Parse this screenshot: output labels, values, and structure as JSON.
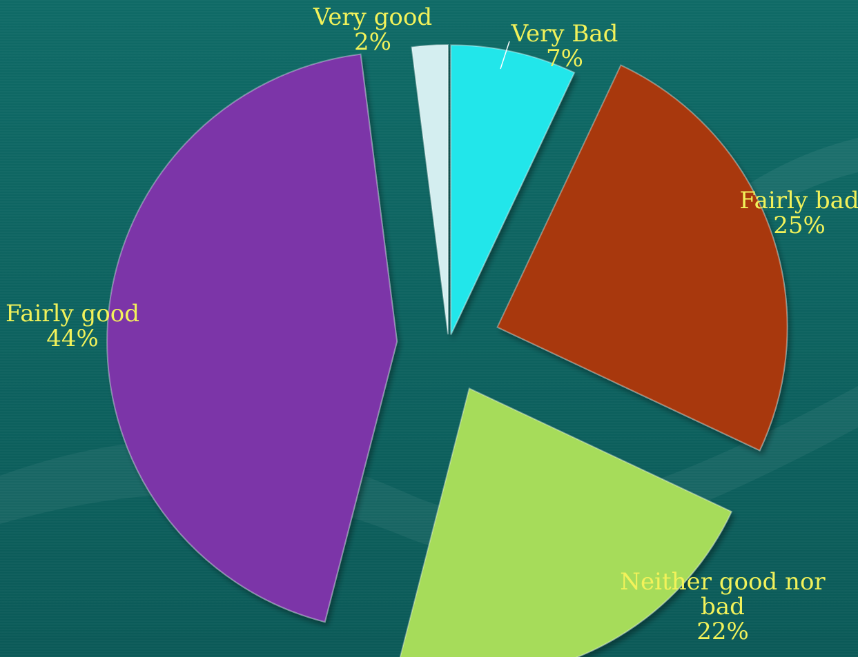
{
  "colors": {
    "background": "#0f6a66",
    "label": "#f2f25a"
  },
  "chart_data": {
    "type": "pie",
    "title": "",
    "legend": "none",
    "categories": [
      "Very Bad",
      "Fairly bad",
      "Neither good nor bad",
      "Fairly good",
      "Very good"
    ],
    "values": [
      7,
      25,
      22,
      44,
      2
    ],
    "value_labels": [
      "7%",
      "25%",
      "22%",
      "44%",
      "2%"
    ],
    "label_lines": [
      [
        "Very Bad",
        "7%"
      ],
      [
        "Fairly bad",
        "25%"
      ],
      [
        "Neither good nor",
        "bad",
        "22%"
      ],
      [
        "Fairly good",
        "44%"
      ],
      [
        "Very good",
        "2%"
      ]
    ],
    "colors": [
      "#22e6ea",
      "#a8380b",
      "#a6dc5a",
      "#7b35a8",
      "#d4eef0"
    ],
    "start": "top",
    "direction": "clockwise",
    "exploded": true
  }
}
